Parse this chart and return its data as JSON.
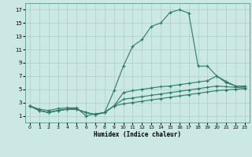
{
  "xlabel": "Humidex (Indice chaleur)",
  "ylabel": "",
  "bg_color": "#cce8e4",
  "grid_color": "#aacfcc",
  "line_color": "#2a7a6a",
  "xlim": [
    -0.5,
    23.5
  ],
  "ylim": [
    0,
    18
  ],
  "xticks": [
    0,
    1,
    2,
    3,
    4,
    5,
    6,
    7,
    8,
    9,
    10,
    11,
    12,
    13,
    14,
    15,
    16,
    17,
    18,
    19,
    20,
    21,
    22,
    23
  ],
  "yticks": [
    1,
    3,
    5,
    7,
    9,
    11,
    13,
    15,
    17
  ],
  "curve1_x": [
    0,
    1,
    2,
    3,
    4,
    5,
    6,
    7,
    8,
    9,
    10,
    11,
    12,
    13,
    14,
    15,
    16,
    17,
    18,
    19,
    20,
    21,
    22,
    23
  ],
  "curve1_y": [
    2.5,
    2.0,
    1.8,
    2.1,
    2.2,
    2.2,
    1.0,
    1.3,
    1.5,
    4.8,
    8.5,
    11.5,
    12.5,
    14.5,
    15.0,
    16.6,
    17.0,
    16.5,
    8.5,
    8.5,
    7.0,
    6.0,
    5.5,
    5.5
  ],
  "curve2_x": [
    0,
    1,
    2,
    3,
    4,
    5,
    6,
    7,
    8,
    9,
    10,
    11,
    12,
    13,
    14,
    15,
    16,
    17,
    18,
    19,
    20,
    21,
    22,
    23
  ],
  "curve2_y": [
    2.5,
    1.8,
    1.5,
    1.8,
    2.0,
    2.0,
    1.5,
    1.2,
    1.5,
    2.5,
    4.5,
    4.8,
    5.0,
    5.2,
    5.4,
    5.5,
    5.7,
    5.9,
    6.1,
    6.3,
    7.0,
    6.2,
    5.5,
    5.4
  ],
  "curve3_x": [
    0,
    1,
    2,
    3,
    4,
    5,
    6,
    7,
    8,
    9,
    10,
    11,
    12,
    13,
    14,
    15,
    16,
    17,
    18,
    19,
    20,
    21,
    22,
    23
  ],
  "curve3_y": [
    2.5,
    1.8,
    1.5,
    1.8,
    2.0,
    2.0,
    1.5,
    1.2,
    1.5,
    2.5,
    3.5,
    3.7,
    3.9,
    4.1,
    4.3,
    4.5,
    4.7,
    4.9,
    5.1,
    5.3,
    5.5,
    5.4,
    5.3,
    5.2
  ],
  "curve4_x": [
    0,
    1,
    2,
    3,
    4,
    5,
    6,
    7,
    8,
    9,
    10,
    11,
    12,
    13,
    14,
    15,
    16,
    17,
    18,
    19,
    20,
    21,
    22,
    23
  ],
  "curve4_y": [
    2.5,
    1.8,
    1.5,
    1.8,
    2.0,
    2.0,
    1.5,
    1.2,
    1.5,
    2.5,
    2.8,
    3.0,
    3.2,
    3.4,
    3.6,
    3.8,
    4.0,
    4.2,
    4.4,
    4.6,
    4.8,
    4.9,
    5.0,
    5.1
  ]
}
